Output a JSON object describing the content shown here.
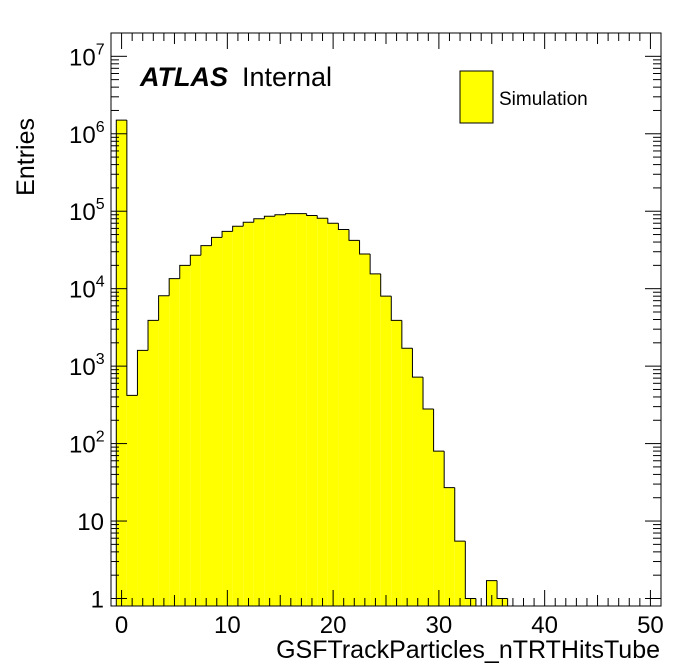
{
  "chart_data": {
    "type": "bar",
    "style": "histogram",
    "xlabel": "GSFTrackParticles_nTRTHitsTube",
    "ylabel": "Entries",
    "xlim": [
      -1,
      51
    ],
    "ylim": [
      0.8,
      20000000
    ],
    "y_scale": "log",
    "x_ticks": [
      0,
      10,
      20,
      30,
      40,
      50
    ],
    "y_ticks": [
      {
        "value": 1,
        "base": "1",
        "exp": ""
      },
      {
        "value": 10,
        "base": "10",
        "exp": ""
      },
      {
        "value": 100,
        "base": "10",
        "exp": "2"
      },
      {
        "value": 1000,
        "base": "10",
        "exp": "3"
      },
      {
        "value": 10000,
        "base": "10",
        "exp": "4"
      },
      {
        "value": 100000,
        "base": "10",
        "exp": "5"
      },
      {
        "value": 1000000,
        "base": "10",
        "exp": "6"
      },
      {
        "value": 10000000,
        "base": "10",
        "exp": "7"
      }
    ],
    "bin_edges_start": -0.5,
    "bin_width": 1,
    "values": [
      1500000,
      420,
      1600,
      3900,
      8100,
      13500,
      20000,
      27000,
      36000,
      46000,
      55000,
      64000,
      72000,
      80000,
      86000,
      90000,
      93000,
      93000,
      88000,
      81000,
      70000,
      58000,
      42000,
      28000,
      15500,
      8000,
      3900,
      1700,
      720,
      280,
      80,
      27,
      5.5,
      1,
      0,
      1.7,
      1,
      0,
      0.7,
      0,
      0,
      0,
      0,
      0,
      0,
      0,
      0,
      0,
      0,
      0,
      0
    ],
    "series": [
      {
        "name": "Simulation",
        "color": "#ffff00"
      }
    ],
    "legend_position": "top-right",
    "fill_color": "#ffff00",
    "line_color": "#000000"
  },
  "annotations": {
    "experiment": "ATLAS",
    "status": "Internal"
  }
}
